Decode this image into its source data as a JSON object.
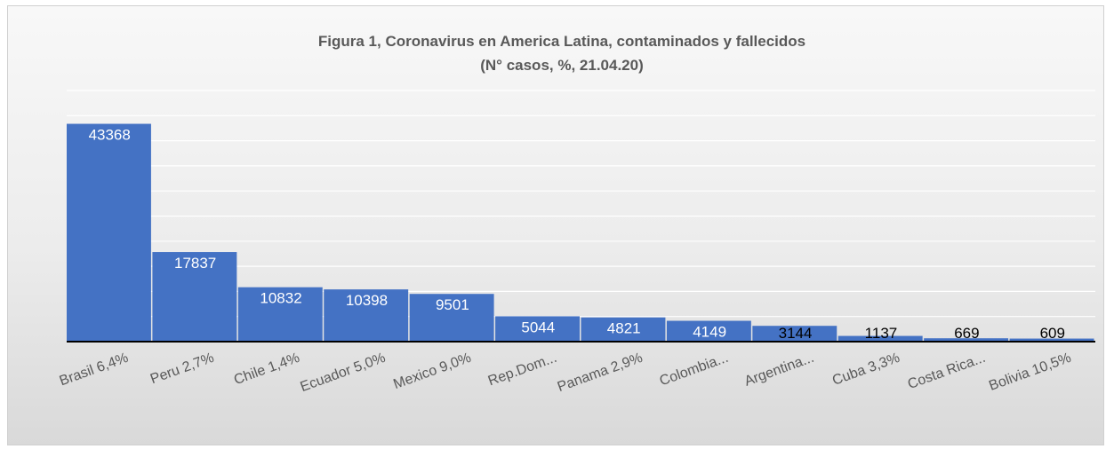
{
  "chart_data": {
    "type": "bar",
    "title": "Figura 1, Coronavirus en America Latina, contaminados y fallecidos",
    "subtitle": "(N° casos, %, 21.04.20)",
    "categories": [
      "Brasil 6,4%",
      "Peru 2,7%",
      "Chile 1,4%",
      "Ecuador 5,0%",
      "Mexico 9,0%",
      "Rep.Dom...",
      "Panama 2,9%",
      "Colombia...",
      "Argentina...",
      "Cuba 3,3%",
      "Costa Rica...",
      "Bolivia 10,5%"
    ],
    "values": [
      43368,
      17837,
      10832,
      10398,
      9501,
      5044,
      4821,
      4149,
      3144,
      1137,
      669,
      609
    ],
    "data_labels": [
      "43368",
      "17837",
      "10832",
      "10398",
      "9501",
      "5044",
      "4821",
      "4149",
      "3144",
      "1137",
      "669",
      "609"
    ],
    "ylim": [
      0,
      50000
    ],
    "grid": true,
    "legend": "none",
    "colors": {
      "bar": "#4472c4",
      "label_inside": "#ffffff",
      "label_outside": "#000000",
      "grid": "#ffffff",
      "axis": "#000000"
    }
  }
}
